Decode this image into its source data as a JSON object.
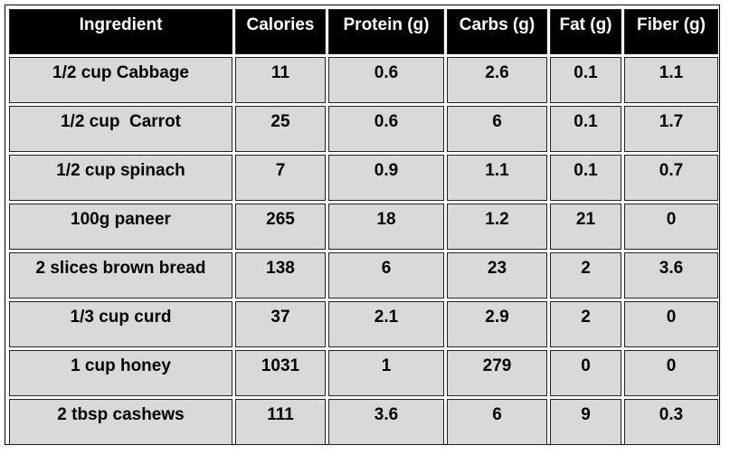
{
  "table": {
    "headers": [
      "Ingredient",
      "Calories",
      "Protein (g)",
      "Carbs (g)",
      "Fat (g)",
      "Fiber (g)"
    ],
    "rows": [
      [
        "1/2 cup Cabbage",
        "11",
        "0.6",
        "2.6",
        "0.1",
        "1.1"
      ],
      [
        "1/2 cup  Carrot",
        "25",
        "0.6",
        "6",
        "0.1",
        "1.7"
      ],
      [
        "1/2 cup spinach",
        "7",
        "0.9",
        "1.1",
        "0.1",
        "0.7"
      ],
      [
        "100g paneer",
        "265",
        "18",
        "1.2",
        "21",
        "0"
      ],
      [
        "2 slices brown bread",
        "138",
        "6",
        "23",
        "2",
        "3.6"
      ],
      [
        "1/3 cup curd",
        "37",
        "2.1",
        "2.9",
        "2",
        "0"
      ],
      [
        "1 cup honey",
        "1031",
        "1",
        "279",
        "0",
        "0"
      ],
      [
        "2 tbsp cashews",
        "111",
        "3.6",
        "6",
        "9",
        "0.3"
      ]
    ]
  },
  "colors": {
    "header_bg": "#000000",
    "header_text": "#ffffff",
    "cell_bg": "#d9d9d9",
    "border": "#222222"
  }
}
